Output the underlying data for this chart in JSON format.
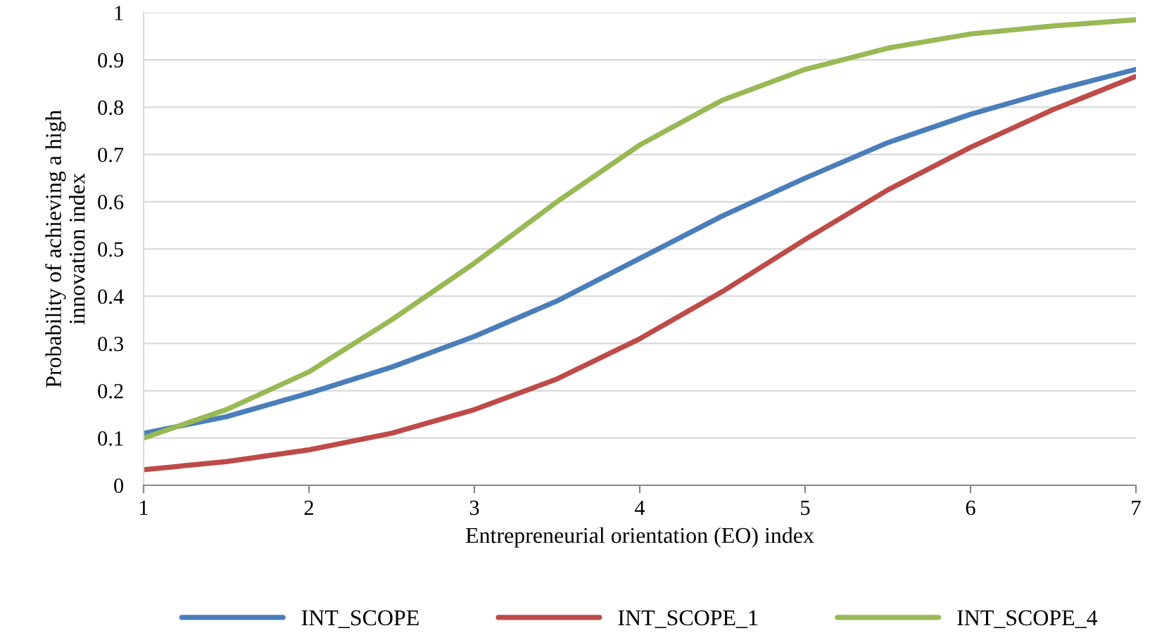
{
  "chart_data": {
    "type": "line",
    "xlabel": "Entrepreneurial orientation (EO) index",
    "ylabel": "Probability of achieving a high\ninnovation index",
    "x": [
      1,
      1.5,
      2,
      2.5,
      3,
      3.5,
      4,
      4.5,
      5,
      5.5,
      6,
      6.5,
      7
    ],
    "series": [
      {
        "name": "INT_SCOPE",
        "color": "#4a7ebb",
        "values": [
          0.11,
          0.145,
          0.195,
          0.25,
          0.315,
          0.39,
          0.48,
          0.57,
          0.65,
          0.725,
          0.785,
          0.835,
          0.88
        ]
      },
      {
        "name": "INT_SCOPE_1",
        "color": "#be4b48",
        "values": [
          0.033,
          0.05,
          0.075,
          0.11,
          0.16,
          0.225,
          0.31,
          0.41,
          0.52,
          0.625,
          0.715,
          0.795,
          0.865
        ]
      },
      {
        "name": "INT_SCOPE_4",
        "color": "#98b954",
        "values": [
          0.1,
          0.16,
          0.24,
          0.35,
          0.47,
          0.6,
          0.72,
          0.815,
          0.88,
          0.925,
          0.955,
          0.972,
          0.985
        ]
      }
    ],
    "xlim": [
      1,
      7
    ],
    "xticks": [
      1,
      2,
      3,
      4,
      5,
      6,
      7
    ],
    "ylim": [
      0,
      1
    ],
    "yticks": [
      0,
      0.1,
      0.2,
      0.3,
      0.4,
      0.5,
      0.6,
      0.7,
      0.8,
      0.9,
      1
    ],
    "grid": "y",
    "legend": "bottom",
    "marker": "none",
    "line_style": "solid"
  }
}
